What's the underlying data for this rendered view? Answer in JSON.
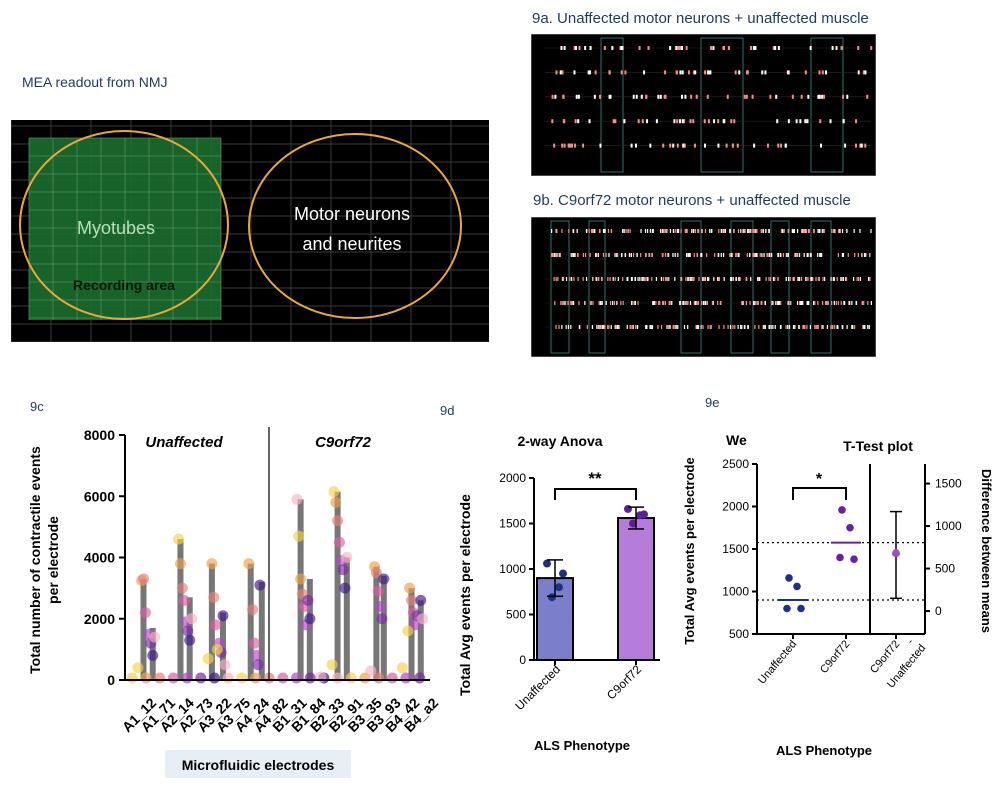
{
  "mea": {
    "title": "MEA readout from NMJ",
    "myotubes_label": "Myotubes",
    "recording_label": "Recording area",
    "motor_label_1": "Motor neurons",
    "motor_label_2": "and neurites"
  },
  "panel_9a": {
    "title": "9a. Unaffected motor neurons + unaffected muscle"
  },
  "panel_9b": {
    "title": "9b. C9orf72 motor neurons + unaffected muscle"
  },
  "chart_data": [
    {
      "id": "9c",
      "panel_label": "9c",
      "type": "scatter",
      "title": "",
      "xlabel": "Microfluidic electrodes",
      "ylabel": "Total number of contractile events per electrode",
      "ylabel_line1": "Total number of contractile events",
      "ylabel_line2": "per electrode",
      "ylim": [
        0,
        8000
      ],
      "yticks": [
        0,
        2000,
        4000,
        6000,
        8000
      ],
      "ytick_labels": [
        "0",
        "2000",
        "4000",
        "6000",
        "8000"
      ],
      "group_labels": [
        "Unaffected",
        "C9orf72"
      ],
      "tick_labels": [
        "A1_12",
        "A1_71",
        "A2_14",
        "A2_73",
        "A3_22",
        "A3_75",
        "A4_24",
        "A4_82",
        "B1_31",
        "B1_84",
        "B2_33",
        "B2_91",
        "B3_35",
        "B3_93",
        "B4_42",
        "B4_a2"
      ],
      "tick_labels_display": [
        "A1_12",
        "A1_71",
        "A2_14",
        "A2_73",
        "A3_22",
        "A3_75",
        "A4_24",
        "A4_82",
        "B1_31",
        "B1_84",
        "B2_33",
        "B2_91",
        "B3_35",
        "B3_93",
        "B4_42",
        "B4_a2"
      ],
      "bars": [
        {
          "x": 1.0,
          "value": 3300
        },
        {
          "x": 1.5,
          "value": 1700
        },
        {
          "x": 3.0,
          "value": 4600
        },
        {
          "x": 3.5,
          "value": 2700
        },
        {
          "x": 4.7,
          "value": 3800
        },
        {
          "x": 5.3,
          "value": 2200
        },
        {
          "x": 6.8,
          "value": 3800
        },
        {
          "x": 7.4,
          "value": 3200
        },
        {
          "x": 9.5,
          "value": 5900
        },
        {
          "x": 10.0,
          "value": 3300
        },
        {
          "x": 11.5,
          "value": 6150
        },
        {
          "x": 12.0,
          "value": 4000
        },
        {
          "x": 13.6,
          "value": 3700
        },
        {
          "x": 14.0,
          "value": 3400
        },
        {
          "x": 15.5,
          "value": 3000
        },
        {
          "x": 16.0,
          "value": 2600
        }
      ],
      "points": [
        {
          "x": 0.7,
          "value": 400
        },
        {
          "x": 0.9,
          "value": 3250
        },
        {
          "x": 1.0,
          "value": 3300
        },
        {
          "x": 1.1,
          "value": 2200
        },
        {
          "x": 1.3,
          "value": 1500
        },
        {
          "x": 1.4,
          "value": 1200
        },
        {
          "x": 1.5,
          "value": 800
        },
        {
          "x": 1.6,
          "value": 1400
        },
        {
          "x": 2.9,
          "value": 4600
        },
        {
          "x": 3.0,
          "value": 3800
        },
        {
          "x": 3.1,
          "value": 3000
        },
        {
          "x": 3.2,
          "value": 2600
        },
        {
          "x": 3.3,
          "value": 1900
        },
        {
          "x": 3.4,
          "value": 1600
        },
        {
          "x": 3.5,
          "value": 1300
        },
        {
          "x": 3.6,
          "value": 2000
        },
        {
          "x": 4.5,
          "value": 700
        },
        {
          "x": 4.7,
          "value": 3800
        },
        {
          "x": 4.8,
          "value": 2700
        },
        {
          "x": 4.9,
          "value": 1800
        },
        {
          "x": 5.1,
          "value": 1200
        },
        {
          "x": 5.2,
          "value": 900
        },
        {
          "x": 5.3,
          "value": 2100
        },
        {
          "x": 5.4,
          "value": 500
        },
        {
          "x": 5.0,
          "value": 1000
        },
        {
          "x": 6.7,
          "value": 3800
        },
        {
          "x": 6.9,
          "value": 2300
        },
        {
          "x": 7.0,
          "value": 1200
        },
        {
          "x": 7.1,
          "value": 800
        },
        {
          "x": 7.2,
          "value": 500
        },
        {
          "x": 7.3,
          "value": 3100
        },
        {
          "x": 9.3,
          "value": 5900
        },
        {
          "x": 9.4,
          "value": 4700
        },
        {
          "x": 9.5,
          "value": 3300
        },
        {
          "x": 9.6,
          "value": 2800
        },
        {
          "x": 9.7,
          "value": 2400
        },
        {
          "x": 9.8,
          "value": 1800
        },
        {
          "x": 9.9,
          "value": 2600
        },
        {
          "x": 10.0,
          "value": 2000
        },
        {
          "x": 10.6,
          "value": 100
        },
        {
          "x": 11.3,
          "value": 6150
        },
        {
          "x": 11.4,
          "value": 5800
        },
        {
          "x": 11.5,
          "value": 5200
        },
        {
          "x": 11.6,
          "value": 4500
        },
        {
          "x": 11.7,
          "value": 3900
        },
        {
          "x": 11.8,
          "value": 3600
        },
        {
          "x": 11.9,
          "value": 3000
        },
        {
          "x": 12.0,
          "value": 4000
        },
        {
          "x": 11.2,
          "value": 500
        },
        {
          "x": 13.5,
          "value": 3700
        },
        {
          "x": 13.6,
          "value": 3500
        },
        {
          "x": 13.7,
          "value": 2900
        },
        {
          "x": 13.8,
          "value": 2400
        },
        {
          "x": 13.9,
          "value": 2000
        },
        {
          "x": 14.0,
          "value": 3300
        },
        {
          "x": 13.3,
          "value": 300
        },
        {
          "x": 15.0,
          "value": 400
        },
        {
          "x": 15.4,
          "value": 3000
        },
        {
          "x": 15.5,
          "value": 2600
        },
        {
          "x": 15.6,
          "value": 2200
        },
        {
          "x": 15.7,
          "value": 1800
        },
        {
          "x": 15.8,
          "value": 2100
        },
        {
          "x": 16.0,
          "value": 2600
        },
        {
          "x": 16.1,
          "value": 2000
        },
        {
          "x": 15.3,
          "value": 1600
        }
      ]
    },
    {
      "id": "9d",
      "panel_label": "9d",
      "type": "bar",
      "title": "2-way Anova",
      "xlabel": "ALS Phenotype",
      "ylabel": "Total Avg events per electrode",
      "ylim": [
        0,
        2000
      ],
      "yticks": [
        0,
        500,
        1000,
        1500,
        2000
      ],
      "ytick_labels": [
        "0",
        "500",
        "1000",
        "1500",
        "2000"
      ],
      "categories": [
        "Unaffected",
        "C9orf72"
      ],
      "values": [
        900,
        1560
      ],
      "error": [
        [
          700,
          1100
        ],
        [
          1440,
          1680
        ]
      ],
      "points": [
        [
          1060,
          950,
          800,
          690
        ],
        [
          1660,
          1600,
          1590,
          1500
        ]
      ],
      "significance": "**",
      "colors": [
        "#7b7fc9",
        "#b57dd9"
      ]
    },
    {
      "id": "9e",
      "panel_label": "9e",
      "type": "scatter",
      "title": "T-Test plot",
      "corner_label": "We",
      "xlabel": "ALS Phenotype",
      "ylabel": "Total Avg events per electrode",
      "ylabel_right": "Difference between means",
      "ylim": [
        500,
        2500
      ],
      "yticks": [
        500,
        1000,
        1500,
        2000,
        2500
      ],
      "ytick_labels": [
        "500",
        "1000",
        "1500",
        "2000",
        "2500"
      ],
      "ylim_right": [
        -270,
        1730
      ],
      "yticks_right": [
        0,
        500,
        1000,
        1500
      ],
      "ytick_labels_right": [
        "0",
        "500",
        "1000",
        "1500"
      ],
      "categories": [
        "Unaffected",
        "C9orf72",
        "C9orf72 - Unaffected"
      ],
      "cat_line1": [
        "Unaffected",
        "C9orf72",
        "C9orf72"
      ],
      "cat_line2": [
        "",
        "",
        "-"
      ],
      "cat_line3": [
        "",
        "",
        "Unaffected"
      ],
      "points": [
        [
          1160,
          1060,
          800,
          800
        ],
        [
          1960,
          1750,
          1400,
          1380
        ]
      ],
      "means": [
        900,
        1575
      ],
      "difference": {
        "mean": 680,
        "ci": [
          150,
          1170
        ]
      },
      "significance": "*"
    }
  ]
}
